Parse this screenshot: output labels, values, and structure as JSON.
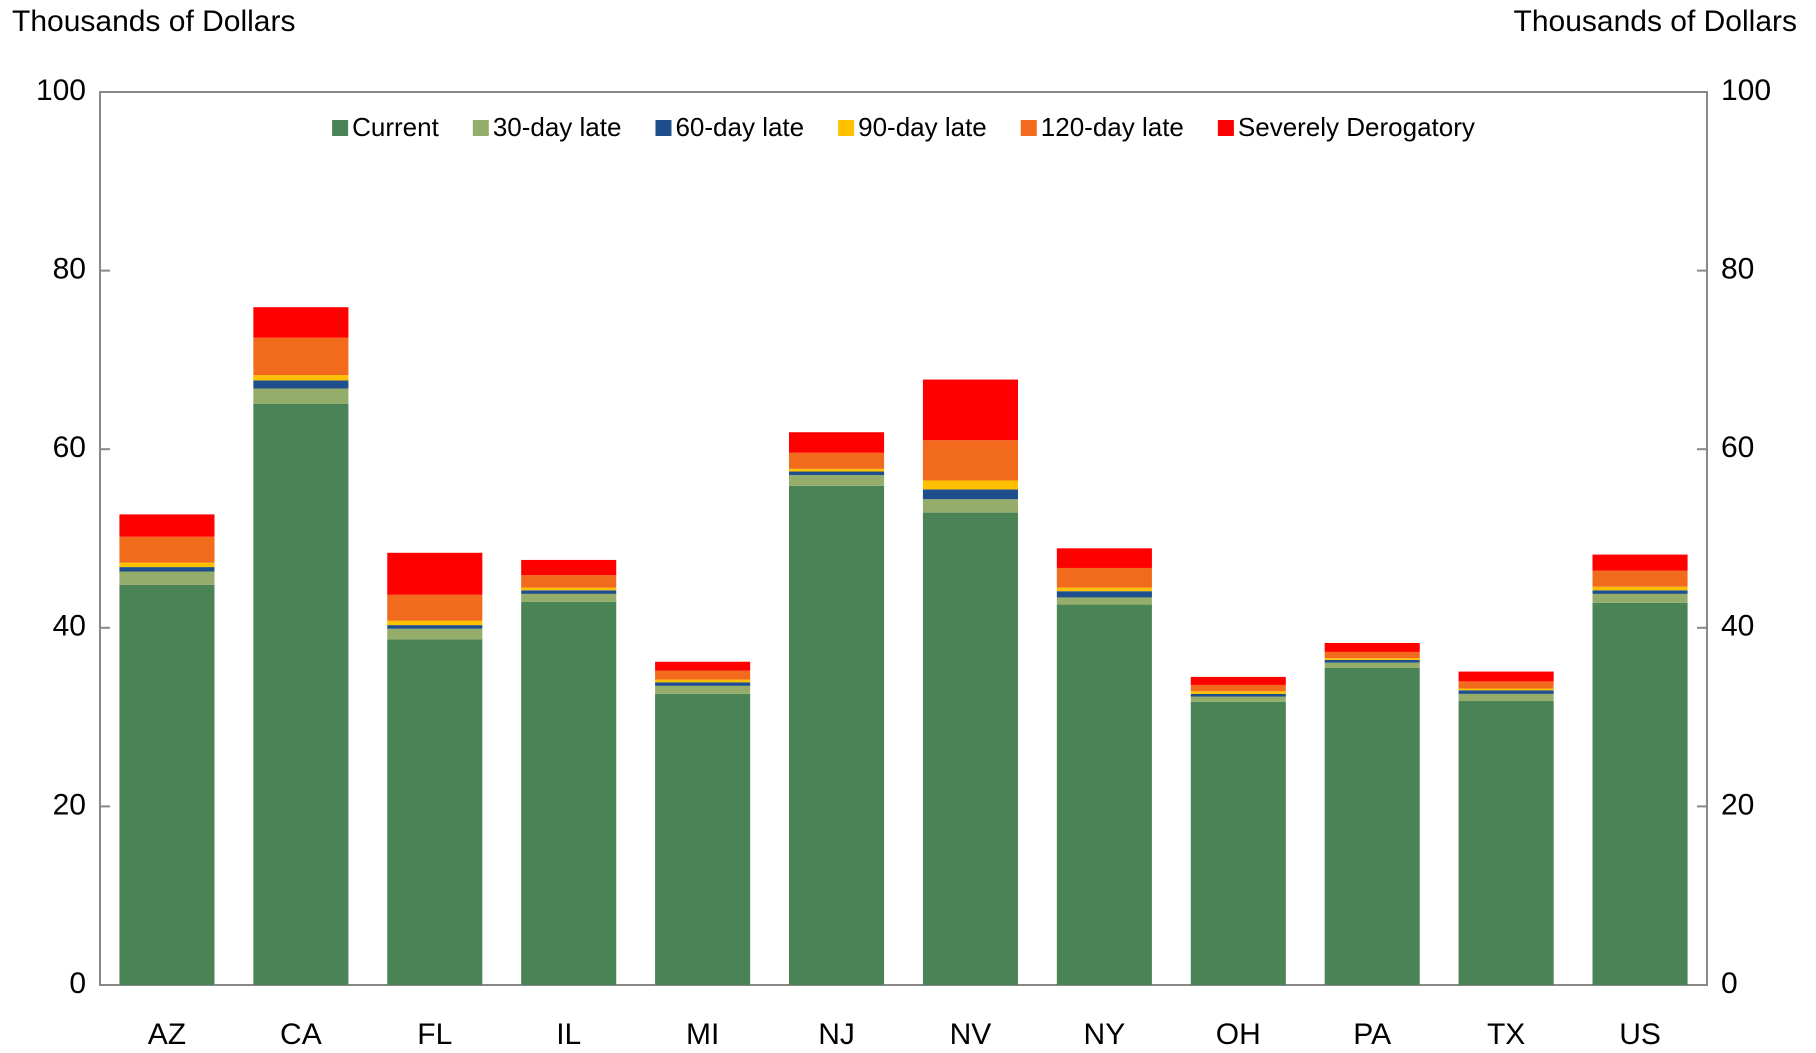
{
  "chart_data": {
    "type": "stacked_bar",
    "y_label": "Thousands of Dollars",
    "y2_label": "Thousands of Dollars",
    "categories": [
      "AZ",
      "CA",
      "FL",
      "IL",
      "MI",
      "NJ",
      "NV",
      "NY",
      "OH",
      "PA",
      "TX",
      "US"
    ],
    "series": [
      {
        "name": "Current",
        "color": "#4a8356",
        "values": [
          44.8,
          65.1,
          38.7,
          42.9,
          32.6,
          55.9,
          52.9,
          42.6,
          31.7,
          35.5,
          31.8,
          42.8
        ]
      },
      {
        "name": "30-day late",
        "color": "#94ad6a",
        "values": [
          1.5,
          1.7,
          1.2,
          0.9,
          0.9,
          1.2,
          1.5,
          0.8,
          0.6,
          0.6,
          0.8,
          1.0
        ]
      },
      {
        "name": "60-day late",
        "color": "#1f4e8c",
        "values": [
          0.5,
          0.9,
          0.4,
          0.4,
          0.4,
          0.4,
          1.1,
          0.7,
          0.3,
          0.3,
          0.4,
          0.4
        ]
      },
      {
        "name": "90-day late",
        "color": "#ffc000",
        "values": [
          0.5,
          0.6,
          0.5,
          0.3,
          0.3,
          0.3,
          1.0,
          0.4,
          0.3,
          0.2,
          0.2,
          0.4
        ]
      },
      {
        "name": "120-day late",
        "color": "#f26a1b",
        "values": [
          2.9,
          4.2,
          2.9,
          1.4,
          1.0,
          1.8,
          4.5,
          2.2,
          0.7,
          0.7,
          0.8,
          1.8
        ]
      },
      {
        "name": "Severely Derogatory",
        "color": "#ff0000",
        "values": [
          2.5,
          3.4,
          4.7,
          1.7,
          1.0,
          2.3,
          6.8,
          2.2,
          0.9,
          1.0,
          1.1,
          1.8
        ]
      }
    ],
    "ylim": [
      0,
      100
    ],
    "yticks": [
      0,
      20,
      40,
      60,
      80,
      100
    ],
    "y2lim": [
      0,
      100
    ],
    "y2ticks": [
      0,
      20,
      40,
      60,
      80,
      100
    ],
    "legend": "top"
  }
}
